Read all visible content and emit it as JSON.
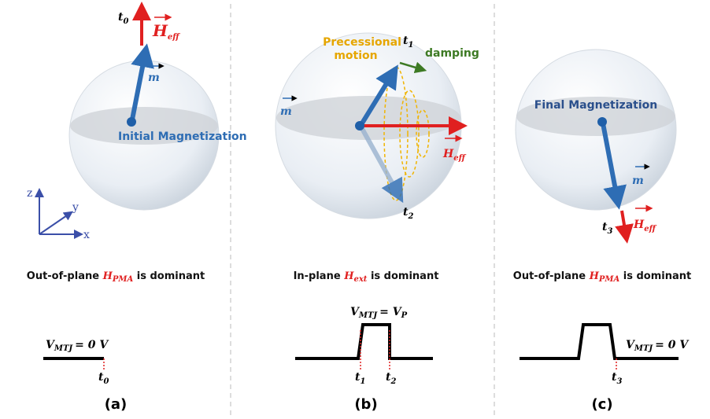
{
  "panels": [
    {
      "caption": "(a)",
      "sphere_text": "Initial Magnetization",
      "m": "m",
      "h_eff": {
        "base": "H",
        "sub": "eff"
      },
      "time": {
        "base": "t",
        "sub": "0"
      },
      "axes": {
        "z": "z",
        "y": "y",
        "x": "x"
      },
      "statement": {
        "before": "Out-of-plane ",
        "field": "H",
        "sub": "PMA",
        "after": " is dominant"
      },
      "voltage": {
        "base": "V",
        "sub": "MTJ",
        "rhs": "= 0 V"
      },
      "pulse_times": [
        {
          "base": "t",
          "sub": "0"
        }
      ]
    },
    {
      "caption": "(b)",
      "precession": [
        "Precessional",
        "motion"
      ],
      "damping": "damping",
      "m": "m",
      "h_eff": {
        "base": "H",
        "sub": "eff"
      },
      "time_start": {
        "base": "t",
        "sub": "1"
      },
      "time_end": {
        "base": "t",
        "sub": "2"
      },
      "statement": {
        "before": "In-plane ",
        "field": "H",
        "sub": "ext",
        "after": " is dominant"
      },
      "voltage": {
        "base": "V",
        "sub": "MTJ",
        "rhs": "= V",
        "rhs_sub": "P"
      },
      "pulse_times": [
        {
          "base": "t",
          "sub": "1"
        },
        {
          "base": "t",
          "sub": "2"
        }
      ]
    },
    {
      "caption": "(c)",
      "sphere_text": "Final Magnetization",
      "m": "m",
      "h_eff": {
        "base": "H",
        "sub": "eff"
      },
      "time": {
        "base": "t",
        "sub": "3"
      },
      "statement": {
        "before": "Out-of-plane ",
        "field": "H",
        "sub": "PMA",
        "after": " is dominant"
      },
      "voltage": {
        "base": "V",
        "sub": "MTJ",
        "rhs": "= 0 V"
      },
      "pulse_times": [
        {
          "base": "t",
          "sub": "3"
        }
      ]
    }
  ]
}
